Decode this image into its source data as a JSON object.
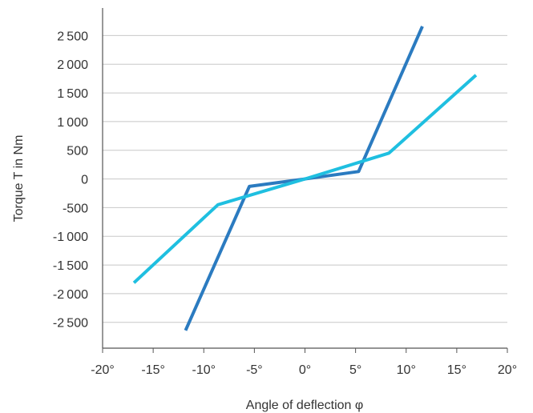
{
  "chart_data": {
    "type": "line",
    "title": "",
    "xlabel": "Angle of deflection φ",
    "ylabel": "Torque T in Nm",
    "xlim": [
      -20,
      20
    ],
    "ylim": [
      -2950,
      2980
    ],
    "x_ticks": [
      -20,
      -15,
      -10,
      -5,
      0,
      5,
      10,
      15,
      20
    ],
    "x_tick_labels": [
      "-20°",
      "-15°",
      "-10°",
      "-5°",
      "0°",
      "5°",
      "10°",
      "15°",
      "20°"
    ],
    "y_ticks": [
      2500,
      2000,
      1500,
      1000,
      500,
      0,
      -500,
      -1000,
      -1500,
      -2000,
      -2500
    ],
    "y_tick_labels": [
      "2 500",
      "2 000",
      "1 500",
      "1 000",
      "500",
      "0",
      "-500",
      "-1 000",
      "-1 500",
      "-2 000",
      "-2 500"
    ],
    "grid": "horizontal",
    "series": [
      {
        "color": "#2b7bc0",
        "x": [
          -11.8,
          -5.5,
          0,
          5.3,
          11.6
        ],
        "y": [
          -2640,
          -130,
          0,
          130,
          2660
        ]
      },
      {
        "color": "#1fbfe0",
        "x": [
          -16.9,
          -8.6,
          0,
          8.3,
          16.9
        ],
        "y": [
          -1810,
          -450,
          0,
          450,
          1810
        ]
      }
    ]
  }
}
